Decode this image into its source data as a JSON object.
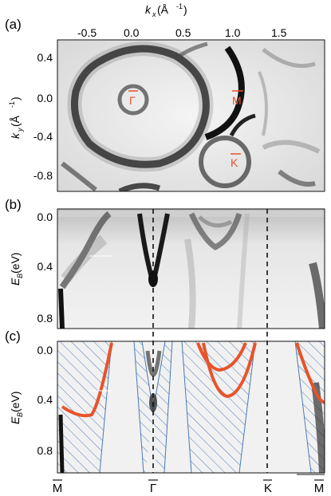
{
  "panels": {
    "a": {
      "label": "(a)",
      "x_axis_title": "k",
      "x_axis_sub": "x",
      "x_axis_unit": " (Å",
      "x_axis_unit_sup": "-1",
      "x_axis_unit_close": ")",
      "x_ticks": [
        "-0.5",
        "0.0",
        "0.5",
        "1.0",
        "1.5"
      ],
      "y_axis_title": "k",
      "y_axis_sub": "y",
      "y_axis_unit": " (Å",
      "y_axis_unit_sup": "-1",
      "y_axis_unit_close": ")",
      "y_ticks": [
        "0.4",
        "0.0",
        "-0.4",
        "-0.8"
      ],
      "points": {
        "gamma": "Γ",
        "m": "M",
        "k": "K"
      }
    },
    "b": {
      "label": "(b)",
      "y_axis_title": "E",
      "y_axis_sub": "B",
      "y_axis_unit": " (eV)",
      "y_ticks": [
        "0.0",
        "0.4",
        "0.8"
      ]
    },
    "c": {
      "label": "(c)",
      "y_axis_title": "E",
      "y_axis_sub": "B",
      "y_axis_unit": " (eV)",
      "y_ticks": [
        "0.0",
        "0.4",
        "0.8"
      ],
      "x_points": [
        "M",
        "Γ",
        "K",
        "M"
      ]
    }
  },
  "colors": {
    "accent": "#e8532a",
    "hatch": "#4a7ab8",
    "map_dark": "#111111"
  }
}
